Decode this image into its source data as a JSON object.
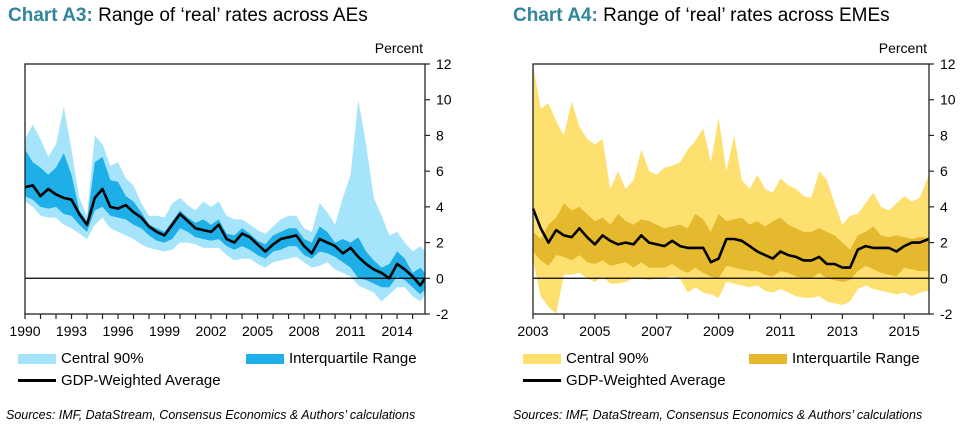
{
  "charts": [
    {
      "id": "A3",
      "title_label": "Chart A3:",
      "title_text": "Range of ‘real’ rates across AEs",
      "unit": "Percent",
      "source": "Sources: IMF, DataStream, Consensus Economics & Authors’ calculations",
      "colors": {
        "central90": "#a6e4fb",
        "iqr": "#1eaee8",
        "average": "#000000",
        "title": "#31859c"
      },
      "legend": {
        "central90": "Central 90%",
        "iqr": "Interquartile Range",
        "average": "GDP-Weighted Average"
      },
      "y_ticks": [
        "12",
        "10",
        "8",
        "6",
        "4",
        "2",
        "0",
        "-2"
      ],
      "x_ticks": [
        "1990",
        "1993",
        "1996",
        "1999",
        "2002",
        "2005",
        "2008",
        "2011",
        "2014"
      ]
    },
    {
      "id": "A4",
      "title_label": "Chart A4:",
      "title_text": "Range of ‘real’ rates across EMEs",
      "unit": "Percent",
      "source": "Sources: IMF, DataStream, Consensus Economics & Authors’ calculations",
      "colors": {
        "central90": "#fde06f",
        "iqr": "#e4b92e",
        "average": "#000000",
        "title": "#31859c"
      },
      "legend": {
        "central90": "Central 90%",
        "iqr": "Interquartile Range",
        "average": "GDP-Weighted Average"
      },
      "y_ticks": [
        "12",
        "10",
        "8",
        "6",
        "4",
        "2",
        "0",
        "-2"
      ],
      "x_ticks": [
        "2003",
        "2005",
        "2007",
        "2009",
        "2011",
        "2013",
        "2015"
      ]
    }
  ],
  "chart_data": [
    {
      "type": "area",
      "title": "Chart A3: Range of ‘real’ rates across AEs",
      "xlabel": "",
      "ylabel": "Percent",
      "ylim": [
        -2,
        12
      ],
      "xlim": [
        1990,
        2015.8
      ],
      "y_axis_side": "right",
      "grid": false,
      "legend_placement": "bottom",
      "x": [
        1990,
        1990.5,
        1991,
        1991.5,
        1992,
        1992.5,
        1993,
        1993.5,
        1994,
        1994.5,
        1995,
        1995.5,
        1996,
        1996.5,
        1997,
        1997.5,
        1998,
        1998.5,
        1999,
        1999.5,
        2000,
        2000.5,
        2001,
        2001.5,
        2002,
        2002.5,
        2003,
        2003.5,
        2004,
        2004.5,
        2005,
        2005.5,
        2006,
        2006.5,
        2007,
        2007.5,
        2008,
        2008.5,
        2009,
        2009.5,
        2010,
        2010.5,
        2011,
        2011.5,
        2012,
        2012.5,
        2013,
        2013.5,
        2014,
        2014.5,
        2015,
        2015.5,
        2015.8
      ],
      "series": [
        {
          "name": "Central 90% (upper)",
          "values": [
            7.8,
            8.6,
            7.8,
            6.8,
            7.5,
            9.6,
            7.2,
            4.5,
            3.5,
            8.0,
            7.5,
            6.3,
            6.5,
            5.6,
            5.2,
            4.2,
            3.5,
            3.5,
            3.4,
            4.2,
            4.5,
            4.1,
            3.8,
            4.3,
            4.0,
            4.3,
            3.5,
            3.3,
            3.3,
            3.0,
            2.7,
            2.5,
            2.9,
            3.3,
            3.5,
            3.5,
            2.8,
            2.6,
            4.2,
            3.7,
            3.0,
            4.5,
            5.8,
            10.0,
            7.5,
            4.5,
            3.5,
            2.4,
            2.6,
            2.0,
            1.5,
            1.8,
            1.5
          ]
        },
        {
          "name": "Interquartile (upper)",
          "values": [
            7.2,
            6.5,
            6.2,
            5.8,
            6.2,
            7.0,
            5.8,
            3.8,
            3.2,
            6.5,
            6.8,
            5.5,
            5.4,
            4.6,
            4.3,
            3.7,
            3.0,
            2.8,
            2.6,
            3.2,
            3.8,
            3.4,
            3.1,
            3.3,
            3.0,
            3.3,
            2.5,
            2.4,
            2.8,
            2.5,
            2.1,
            1.9,
            2.4,
            2.6,
            2.8,
            2.8,
            2.2,
            2.0,
            2.9,
            2.6,
            2.0,
            2.2,
            2.0,
            2.3,
            1.5,
            1.0,
            0.6,
            0.8,
            1.5,
            1.1,
            0.3,
            0.6,
            0.3
          ]
        },
        {
          "name": "GDP-Weighted Average",
          "values": [
            5.1,
            5.2,
            4.6,
            5.0,
            4.7,
            4.5,
            4.4,
            3.6,
            3.0,
            4.5,
            5.0,
            4.0,
            3.9,
            4.1,
            3.7,
            3.4,
            2.9,
            2.6,
            2.4,
            3.0,
            3.6,
            3.2,
            2.8,
            2.7,
            2.6,
            3.0,
            2.2,
            2.0,
            2.5,
            2.3,
            1.9,
            1.5,
            1.9,
            2.2,
            2.3,
            2.4,
            1.8,
            1.4,
            2.2,
            2.0,
            1.8,
            1.4,
            1.7,
            1.2,
            0.8,
            0.5,
            0.3,
            0.0,
            0.8,
            0.5,
            0.1,
            -0.4,
            0.0
          ]
        },
        {
          "name": "Interquartile (lower)",
          "values": [
            4.6,
            4.4,
            4.0,
            3.9,
            4.0,
            3.6,
            3.5,
            3.0,
            2.6,
            3.8,
            4.0,
            3.5,
            3.4,
            3.3,
            3.0,
            2.8,
            2.4,
            2.1,
            2.0,
            2.2,
            2.8,
            2.6,
            2.3,
            2.2,
            2.1,
            2.2,
            1.8,
            1.6,
            1.8,
            1.6,
            1.3,
            1.1,
            1.5,
            1.6,
            1.8,
            1.8,
            1.3,
            1.1,
            1.5,
            1.4,
            1.2,
            0.9,
            0.6,
            0.0,
            -0.1,
            -0.3,
            -0.5,
            -0.5,
            0.1,
            -0.1,
            -0.5,
            -0.9,
            -0.6
          ]
        },
        {
          "name": "Central 90% (lower)",
          "values": [
            4.3,
            4.0,
            3.5,
            3.4,
            3.4,
            3.0,
            2.8,
            2.5,
            2.2,
            3.0,
            3.4,
            2.8,
            2.6,
            2.4,
            2.2,
            1.9,
            1.7,
            1.6,
            1.5,
            1.6,
            2.0,
            2.0,
            1.9,
            1.7,
            1.7,
            1.7,
            1.3,
            1.0,
            1.1,
            1.1,
            0.8,
            0.6,
            0.9,
            1.0,
            1.1,
            1.2,
            0.9,
            0.6,
            0.7,
            0.9,
            0.5,
            0.3,
            0.1,
            -0.4,
            -0.6,
            -0.8,
            -1.3,
            -0.9,
            -0.5,
            -0.5,
            -1.0,
            -1.3,
            -0.9
          ]
        }
      ]
    },
    {
      "type": "area",
      "title": "Chart A4: Range of ‘real’ rates across EMEs",
      "xlabel": "",
      "ylabel": "Percent",
      "ylim": [
        -2,
        12
      ],
      "xlim": [
        2003,
        2015.8
      ],
      "y_axis_side": "right",
      "grid": false,
      "legend_placement": "bottom",
      "x": [
        2003,
        2003.25,
        2003.5,
        2003.75,
        2004,
        2004.25,
        2004.5,
        2004.75,
        2005,
        2005.25,
        2005.5,
        2005.75,
        2006,
        2006.25,
        2006.5,
        2006.75,
        2007,
        2007.25,
        2007.5,
        2007.75,
        2008,
        2008.25,
        2008.5,
        2008.75,
        2009,
        2009.25,
        2009.5,
        2009.75,
        2010,
        2010.25,
        2010.5,
        2010.75,
        2011,
        2011.25,
        2011.5,
        2011.75,
        2012,
        2012.25,
        2012.5,
        2012.75,
        2013,
        2013.25,
        2013.5,
        2013.75,
        2014,
        2014.25,
        2014.5,
        2014.75,
        2015,
        2015.25,
        2015.5,
        2015.8
      ],
      "series": [
        {
          "name": "Central 90% (upper)",
          "values": [
            12.0,
            9.5,
            9.8,
            8.8,
            8.0,
            9.9,
            8.5,
            7.8,
            7.5,
            7.8,
            5.0,
            6.0,
            5.0,
            5.5,
            7.2,
            6.0,
            5.8,
            6.2,
            6.3,
            6.5,
            7.2,
            7.7,
            8.4,
            6.5,
            9.0,
            6.0,
            8.0,
            5.5,
            5.0,
            5.8,
            5.0,
            4.8,
            5.6,
            5.2,
            5.0,
            4.6,
            4.5,
            6.0,
            5.5,
            4.2,
            3.0,
            3.5,
            3.6,
            4.2,
            4.8,
            4.0,
            3.8,
            4.2,
            4.6,
            4.3,
            4.5,
            5.8
          ]
        },
        {
          "name": "Interquartile (upper)",
          "values": [
            2.6,
            2.2,
            3.0,
            3.4,
            4.2,
            3.8,
            4.0,
            3.6,
            3.2,
            3.4,
            3.0,
            3.6,
            3.2,
            3.0,
            3.3,
            3.2,
            3.0,
            2.8,
            2.9,
            3.0,
            2.8,
            3.6,
            3.3,
            2.6,
            3.6,
            3.2,
            3.3,
            3.4,
            3.0,
            3.2,
            2.9,
            3.2,
            3.4,
            3.0,
            2.8,
            2.6,
            2.6,
            2.8,
            2.6,
            2.4,
            2.0,
            1.6,
            2.4,
            2.6,
            2.9,
            2.4,
            2.3,
            2.4,
            2.3,
            2.2,
            2.3,
            2.3
          ]
        },
        {
          "name": "GDP-Weighted Average",
          "values": [
            3.9,
            2.8,
            2.0,
            2.7,
            2.4,
            2.3,
            2.8,
            2.3,
            1.9,
            2.4,
            2.1,
            1.9,
            2.0,
            1.9,
            2.4,
            2.0,
            1.9,
            1.8,
            2.1,
            1.8,
            1.7,
            1.7,
            1.7,
            0.9,
            1.1,
            2.2,
            2.2,
            2.1,
            1.8,
            1.5,
            1.3,
            1.1,
            1.5,
            1.3,
            1.2,
            1.0,
            1.0,
            1.2,
            0.8,
            0.8,
            0.6,
            0.6,
            1.6,
            1.8,
            1.7,
            1.7,
            1.7,
            1.5,
            1.8,
            2.0,
            2.0,
            2.2
          ]
        },
        {
          "name": "Interquartile (lower)",
          "values": [
            1.5,
            1.0,
            0.7,
            1.3,
            1.2,
            1.0,
            1.3,
            0.9,
            0.8,
            1.0,
            0.7,
            0.8,
            0.9,
            0.6,
            0.9,
            0.6,
            0.6,
            0.6,
            0.8,
            0.5,
            0.3,
            0.6,
            0.3,
            0.1,
            0.0,
            0.7,
            0.6,
            0.5,
            0.4,
            0.4,
            0.2,
            0.1,
            0.4,
            0.3,
            0.1,
            0.0,
            0.0,
            0.3,
            0.0,
            -0.1,
            -0.2,
            -0.1,
            0.4,
            0.7,
            0.5,
            0.3,
            0.2,
            0.1,
            0.6,
            0.5,
            0.4,
            0.4
          ]
        },
        {
          "name": "Central 90% (lower)",
          "values": [
            1.0,
            -1.0,
            -1.6,
            -2.0,
            0.2,
            0.2,
            0.3,
            0.0,
            -0.2,
            0.1,
            -0.3,
            -0.3,
            -0.2,
            0.0,
            0.0,
            -0.1,
            0.0,
            0.0,
            0.1,
            0.0,
            -0.8,
            -0.5,
            -0.8,
            -0.9,
            -1.1,
            -0.2,
            -0.3,
            -0.4,
            -0.5,
            -0.4,
            -0.7,
            -0.8,
            -0.6,
            -0.8,
            -1.0,
            -1.1,
            -1.1,
            -1.0,
            -1.3,
            -1.4,
            -1.5,
            -1.3,
            -0.6,
            -0.4,
            -0.6,
            -0.7,
            -0.8,
            -0.9,
            -0.8,
            -1.0,
            -0.8,
            -0.7
          ]
        }
      ]
    }
  ]
}
